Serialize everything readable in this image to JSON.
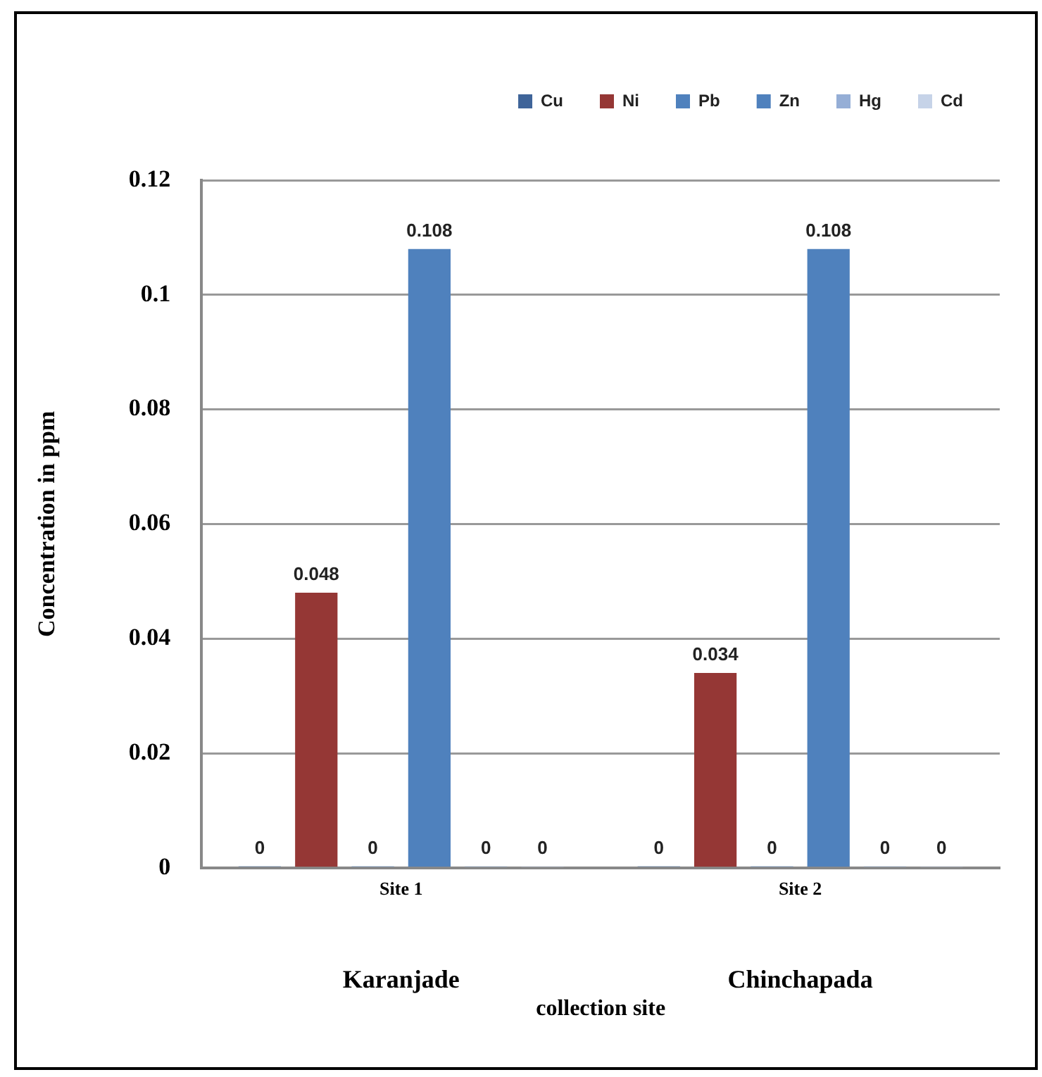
{
  "chart_data": {
    "type": "bar",
    "ylabel": "Concentration in ppm",
    "categories": [
      "Site 1",
      "Site 2"
    ],
    "series": [
      {
        "name": "Cu",
        "color": "#3f6499",
        "values": [
          0,
          0
        ]
      },
      {
        "name": "Ni",
        "color": "#953735",
        "values": [
          0.048,
          0.034
        ]
      },
      {
        "name": "Pb",
        "color": "#4f81bd",
        "values": [
          0,
          0
        ]
      },
      {
        "name": "Zn",
        "color": "#4f81bd",
        "values": [
          0.108,
          0.108
        ]
      },
      {
        "name": "Hg",
        "color": "#95aed6",
        "values": [
          0,
          0
        ]
      },
      {
        "name": "Cd",
        "color": "#c6d3e8",
        "values": [
          0,
          0
        ]
      }
    ],
    "ylim": [
      0,
      0.12
    ],
    "yticks": [
      0,
      0.02,
      0.04,
      0.06,
      0.08,
      0.1,
      0.12
    ],
    "grid": "y",
    "legend": "top right",
    "data_labels": true,
    "annotations": [
      "Karanjade",
      "Chinchapada",
      "collection site"
    ]
  }
}
